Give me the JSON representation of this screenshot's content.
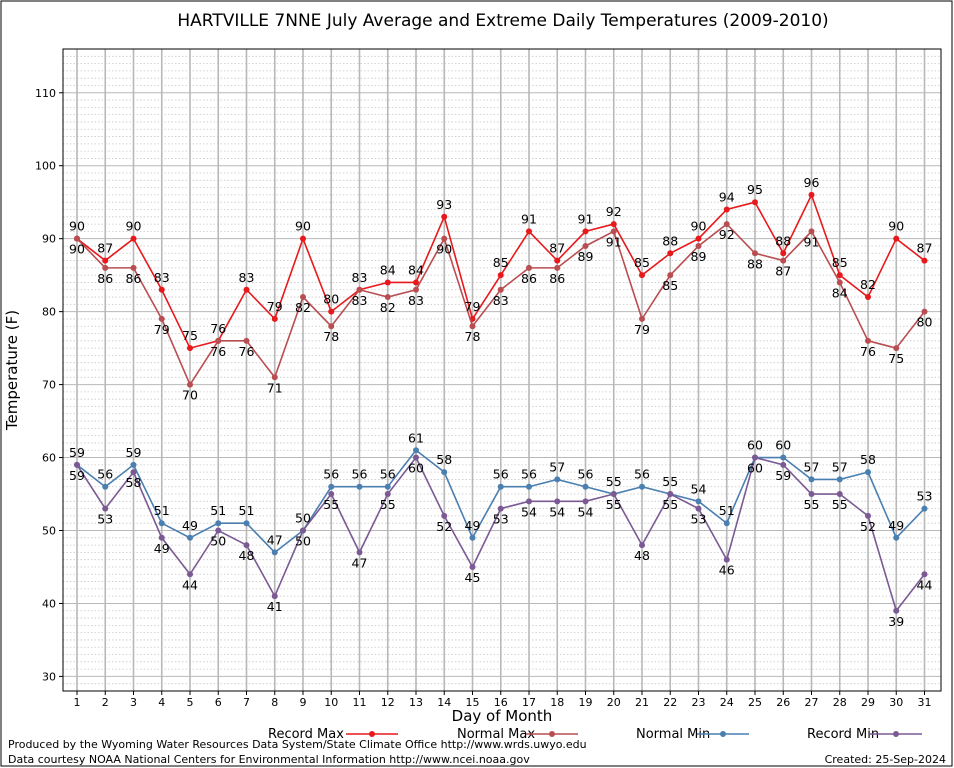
{
  "chart_data": {
    "type": "line",
    "title": "HARTVILLE 7NNE July Average and Extreme Daily Temperatures (2009-2010)",
    "xlabel": "Day of Month",
    "ylabel": "Temperature (F)",
    "ylim": [
      28,
      116
    ],
    "yticks": [
      30,
      40,
      50,
      60,
      70,
      80,
      90,
      100,
      110
    ],
    "x": [
      1,
      2,
      3,
      4,
      5,
      6,
      7,
      8,
      9,
      10,
      11,
      12,
      13,
      14,
      15,
      16,
      17,
      18,
      19,
      20,
      21,
      22,
      23,
      24,
      25,
      26,
      27,
      28,
      29,
      30,
      31
    ],
    "grid": true,
    "legend_position": "bottom",
    "series": [
      {
        "name": "Record Max",
        "color": "#e8191c",
        "values": [
          90,
          87,
          90,
          83,
          75,
          76,
          83,
          79,
          90,
          80,
          83,
          84,
          84,
          93,
          79,
          85,
          91,
          87,
          91,
          92,
          85,
          88,
          90,
          94,
          95,
          88,
          96,
          85,
          82,
          90,
          87
        ]
      },
      {
        "name": "Normal Max",
        "color": "#b94e52",
        "values": [
          90,
          86,
          86,
          79,
          70,
          76,
          76,
          71,
          82,
          78,
          83,
          82,
          83,
          90,
          78,
          83,
          86,
          86,
          89,
          91,
          79,
          85,
          89,
          92,
          88,
          87,
          91,
          84,
          76,
          75,
          80
        ]
      },
      {
        "name": "Normal Min",
        "color": "#4a7fb0",
        "values": [
          59,
          56,
          59,
          51,
          49,
          51,
          51,
          47,
          50,
          56,
          56,
          56,
          61,
          58,
          49,
          56,
          56,
          57,
          56,
          55,
          56,
          55,
          54,
          51,
          60,
          60,
          57,
          57,
          58,
          49,
          53
        ]
      },
      {
        "name": "Record Min",
        "color": "#7b5a93",
        "values": [
          59,
          53,
          58,
          49,
          44,
          50,
          48,
          41,
          50,
          55,
          47,
          55,
          60,
          52,
          45,
          53,
          54,
          54,
          54,
          55,
          48,
          55,
          53,
          46,
          60,
          59,
          55,
          55,
          52,
          39,
          44
        ]
      }
    ]
  },
  "footer": {
    "left1": "Produced by the Wyoming Water Resources Data System/State Climate Office http://www.wrds.uwyo.edu",
    "left2": "Data courtesy NOAA National Centers for Environmental Information http://www.ncei.noaa.gov",
    "right": "Created:  25-Sep-2024"
  }
}
